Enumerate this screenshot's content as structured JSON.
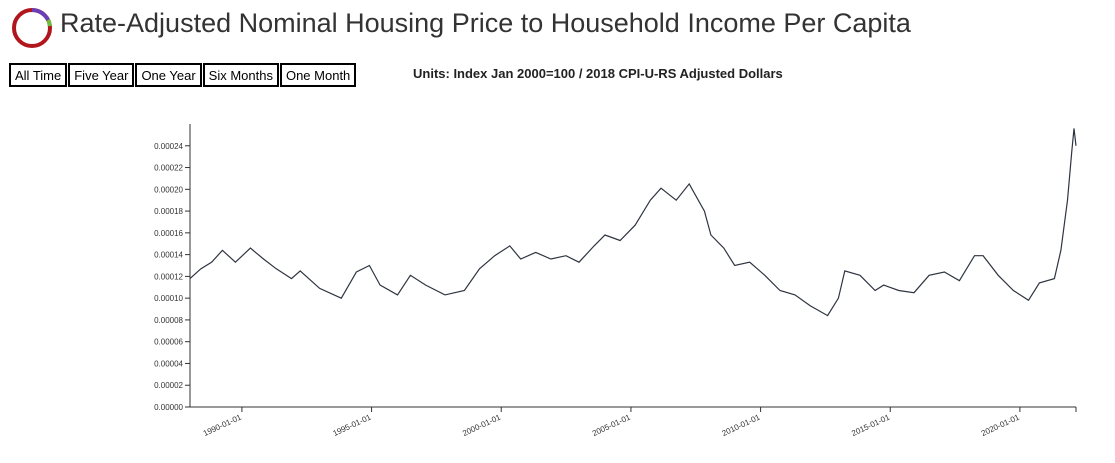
{
  "header": {
    "title": "Rate-Adjusted Nominal Housing Price to Household Income Per Capita",
    "buttons": [
      "All Time",
      "Five Year",
      "One Year",
      "Six Months",
      "One Month"
    ],
    "units": "Units: Index Jan 2000=100 / 2018 CPI-U-RS Adjusted Dollars"
  },
  "chart_data": {
    "type": "line",
    "color": "#2e3440",
    "x": [
      "1988-01-01",
      "1988-06-01",
      "1988-11-01",
      "1989-04-01",
      "1989-10-01",
      "1990-05-01",
      "1990-11-01",
      "1991-05-01",
      "1991-12-01",
      "1992-04-01",
      "1993-01-01",
      "1993-11-01",
      "1994-06-01",
      "1994-12-01",
      "1995-05-01",
      "1996-01-01",
      "1996-07-01",
      "1997-02-01",
      "1997-11-01",
      "1998-08-01",
      "1999-03-01",
      "1999-10-01",
      "2000-05-01",
      "2000-10-01",
      "2001-05-01",
      "2001-12-01",
      "2002-07-01",
      "2003-01-01",
      "2003-08-01",
      "2004-01-01",
      "2004-08-01",
      "2005-03-01",
      "2005-10-01",
      "2006-03-01",
      "2006-10-01",
      "2007-04-01",
      "2007-11-01",
      "2008-02-01",
      "2008-08-01",
      "2009-01-01",
      "2009-08-01",
      "2010-03-01",
      "2010-10-01",
      "2011-05-01",
      "2011-12-01",
      "2012-08-01",
      "2013-01-01",
      "2013-04-01",
      "2013-11-01",
      "2014-06-01",
      "2014-10-01",
      "2015-05-01",
      "2015-12-01",
      "2016-07-01",
      "2017-02-01",
      "2017-09-01",
      "2018-04-01",
      "2018-08-01",
      "2019-03-01",
      "2019-10-01",
      "2020-05-01",
      "2020-10-01",
      "2021-05-01",
      "2021-08-01",
      "2021-11-01",
      "2022-01-01",
      "2022-02-01",
      "2022-03-01"
    ],
    "values": [
      0.000118,
      0.000127,
      0.000133,
      0.000144,
      0.000133,
      0.000146,
      0.000136,
      0.000127,
      0.000118,
      0.000125,
      0.000109,
      0.0001,
      0.000124,
      0.00013,
      0.000112,
      0.000103,
      0.000121,
      0.000112,
      0.000103,
      0.000107,
      0.000127,
      0.000139,
      0.000148,
      0.000136,
      0.000142,
      0.000136,
      0.000139,
      0.000133,
      0.000148,
      0.000158,
      0.000153,
      0.000167,
      0.00019,
      0.000201,
      0.00019,
      0.000205,
      0.00018,
      0.000158,
      0.000146,
      0.00013,
      0.000133,
      0.000121,
      0.000107,
      0.000103,
      9.3e-05,
      8.4e-05,
      0.0001,
      0.000125,
      0.000121,
      0.000107,
      0.000112,
      0.000107,
      0.000105,
      0.000121,
      0.000124,
      0.000116,
      0.000139,
      0.000139,
      0.000121,
      0.000107,
      9.8e-05,
      0.000114,
      0.000118,
      0.000144,
      0.00019,
      0.000235,
      0.000256,
      0.00024
    ],
    "xlim": [
      "1988-01-01",
      "2022-03-01"
    ],
    "xticks": [
      "1990-01-01",
      "1995-01-01",
      "2000-01-01",
      "2005-01-01",
      "2010-01-01",
      "2015-01-01",
      "2020-01-01"
    ],
    "ylim": [
      0,
      0.00026
    ],
    "yticks": [
      {
        "value": 0,
        "label": "0.00000"
      },
      {
        "value": 2e-05,
        "label": "0.00002"
      },
      {
        "value": 4e-05,
        "label": "0.00004"
      },
      {
        "value": 6e-05,
        "label": "0.00006"
      },
      {
        "value": 8e-05,
        "label": "0.00008"
      },
      {
        "value": 0.0001,
        "label": "0.00010"
      },
      {
        "value": 0.00012,
        "label": "0.00012"
      },
      {
        "value": 0.00014,
        "label": "0.00014"
      },
      {
        "value": 0.00016,
        "label": "0.00016"
      },
      {
        "value": 0.00018,
        "label": "0.00018"
      },
      {
        "value": 0.0002,
        "label": "0.00020"
      },
      {
        "value": 0.00022,
        "label": "0.00022"
      },
      {
        "value": 0.00024,
        "label": "0.00024"
      }
    ]
  }
}
